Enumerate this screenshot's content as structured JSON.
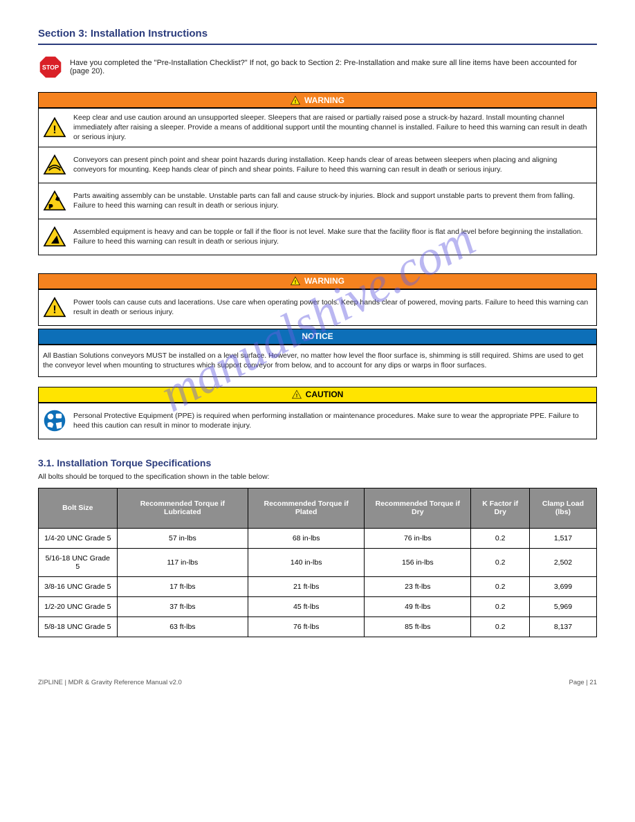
{
  "watermark": "manualshive.com",
  "section_title": "Section 3: Installation Instructions",
  "stop_note": "Have you completed the \"Pre-Installation Checklist?\" If not, go back to Section 2: Pre-Installation and make sure all line items have been accounted for (page 20).",
  "warning1": {
    "header": "WARNING",
    "rows": [
      "Keep clear and use caution around an unsupported sleeper. Sleepers that are raised or partially raised pose a struck-by hazard. Install mounting channel immediately after raising a sleeper. Provide a means of additional support until the mounting channel is installed. Failure to heed this warning can result in death or serious injury.",
      "Conveyors can present pinch point and shear point hazards during installation. Keep hands clear of areas between sleepers when placing and aligning conveyors for mounting. Keep hands clear of pinch and shear points. Failure to heed this warning can result in death or serious injury.",
      "Parts awaiting assembly can be unstable. Unstable parts can fall and cause struck-by injuries. Block and support unstable parts to prevent them from falling. Failure to heed this warning can result in death or serious injury.",
      "Assembled equipment is heavy and can be topple or fall if the floor is not level. Make sure that the facility floor is flat and level before beginning the installation. Failure to heed this warning can result in death or serious injury."
    ]
  },
  "warning2": {
    "header": "WARNING",
    "rows": [
      "Power tools can cause cuts and lacerations. Use care when operating power tools. Keep hands clear of powered, moving parts. Failure to heed this warning can result in death or serious injury."
    ]
  },
  "notice": {
    "header": "NOTICE",
    "rows": [
      "All Bastian Solutions conveyors MUST be installed on a level surface. However, no matter how level the floor surface is, shimming is still required. Shims are used to get the conveyor level when mounting to structures which support conveyor from below, and to account for any dips or warps in floor surfaces."
    ]
  },
  "caution": {
    "header": "CAUTION",
    "rows": [
      "Personal Protective Equipment (PPE) is required when performing installation or maintenance procedures. Make sure to wear the appropriate PPE. Failure to heed this caution can result in minor to moderate injury."
    ]
  },
  "sub_heading": "3.1. Installation Torque Specifications",
  "torque_intro": "All bolts should be torqued to the specification shown in the table below:",
  "table": {
    "headers": [
      "Bolt Size",
      "Recommended Torque if Lubricated",
      "Recommended Torque if Plated",
      "Recommended Torque if Dry",
      "K Factor if Dry",
      "Clamp Load (lbs)"
    ],
    "rows": [
      [
        "1/4-20 UNC Grade 5",
        "57 in-lbs",
        "68 in-lbs",
        "76 in-lbs",
        "0.2",
        "1,517"
      ],
      [
        "5/16-18 UNC Grade 5",
        "117 in-lbs",
        "140 in-lbs",
        "156 in-lbs",
        "0.2",
        "2,502"
      ],
      [
        "3/8-16 UNC Grade 5",
        "17 ft-lbs",
        "21 ft-lbs",
        "23 ft-lbs",
        "0.2",
        "3,699"
      ],
      [
        "1/2-20 UNC Grade 5",
        "37 ft-lbs",
        "45 ft-lbs",
        "49 ft-lbs",
        "0.2",
        "5,969"
      ],
      [
        "5/8-18 UNC Grade 5",
        "63 ft-lbs",
        "76 ft-lbs",
        "85 ft-lbs",
        "0.2",
        "8,137"
      ]
    ]
  },
  "footer": {
    "left": "ZIPLINE | MDR & Gravity Reference Manual v2.0",
    "right": "Page | 21"
  },
  "colors": {
    "orange": "#f5821f",
    "blue": "#0d6fb8",
    "yellow": "#ffe400",
    "header_blue": "#2a3b7c",
    "table_header": "#8f8f8f"
  }
}
